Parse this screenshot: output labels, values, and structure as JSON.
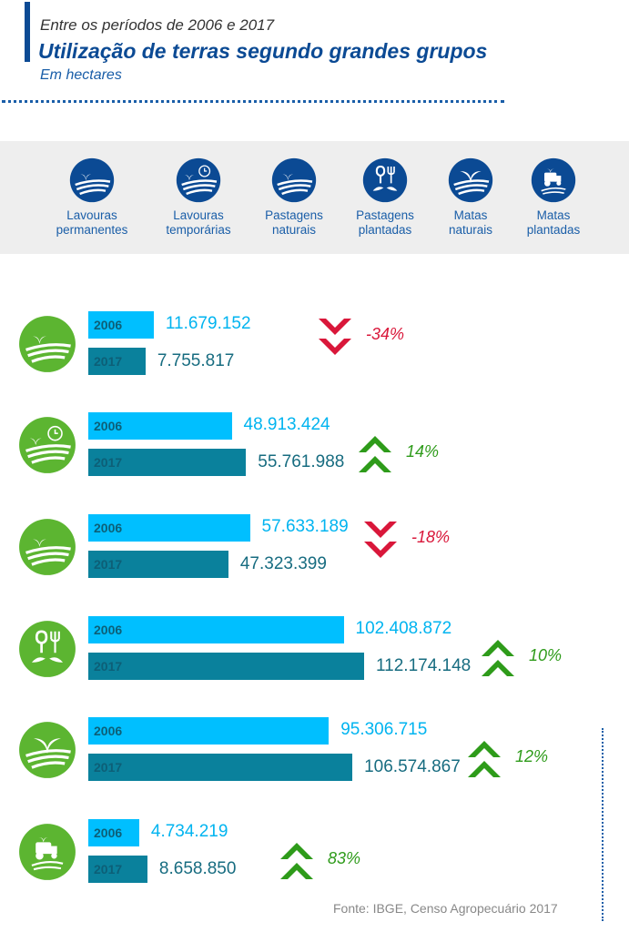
{
  "header": {
    "subtitle": "Entre os períodos de 2006 e 2017",
    "title": "Utilização de terras segundo grandes grupos",
    "unit": "Em hectares"
  },
  "legend": [
    {
      "line1": "Lavouras",
      "line2": "permanentes",
      "icon": "sprout-field-icon"
    },
    {
      "line1": "Lavouras",
      "line2": "temporárias",
      "icon": "sprout-clock-field-icon"
    },
    {
      "line1": "Pastagens",
      "line2": "naturais",
      "icon": "pasture-field-icon"
    },
    {
      "line1": "Pastagens",
      "line2": "plantadas",
      "icon": "shovel-fork-icon"
    },
    {
      "line1": "Matas",
      "line2": "naturais",
      "icon": "tree-field-icon"
    },
    {
      "line1": "Matas",
      "line2": "plantadas",
      "icon": "tractor-icon"
    }
  ],
  "colors": {
    "primary": "#0b4a94",
    "bar2006": "#00bfff",
    "bar2017": "#0a819c",
    "icon_green": "#5cb531",
    "increase": "#2e9b1a",
    "decrease": "#d9173a",
    "legend_bg": "#eeeeee"
  },
  "chart_data": {
    "type": "bar",
    "orientation": "horizontal",
    "unit": "Em hectares",
    "series_labels": [
      "2006",
      "2017"
    ],
    "categories": [
      "Lavouras permanentes",
      "Lavouras temporárias",
      "Pastagens naturais",
      "Pastagens plantadas",
      "Matas naturais",
      "Matas plantadas"
    ],
    "rows": [
      {
        "v2006": 11679152,
        "v2017": 7755817,
        "l2006": "11.679.152",
        "l2017": "7.755.817",
        "change": "-34%",
        "direction": "down"
      },
      {
        "v2006": 48913424,
        "v2017": 55761988,
        "l2006": "48.913.424",
        "l2017": "55.761.988",
        "change": "14%",
        "direction": "up"
      },
      {
        "v2006": 57633189,
        "v2017": 47323399,
        "l2006": "57.633.189",
        "l2017": "47.323.399",
        "change": "-18%",
        "direction": "down"
      },
      {
        "v2006": 102408872,
        "v2017": 112174148,
        "l2006": "102.408.872",
        "l2017": "112.174.148",
        "change": "10%",
        "direction": "up"
      },
      {
        "v2006": 95306715,
        "v2017": 106574867,
        "l2006": "95.306.715",
        "l2017": "106.574.867",
        "change": "12%",
        "direction": "up"
      },
      {
        "v2006": 4734219,
        "v2017": 8658850,
        "l2006": "4.734.219",
        "l2017": "8.658.850",
        "change": "83%",
        "direction": "up"
      }
    ]
  },
  "source": "Fonte: IBGE, Censo Agropecuário 2017"
}
